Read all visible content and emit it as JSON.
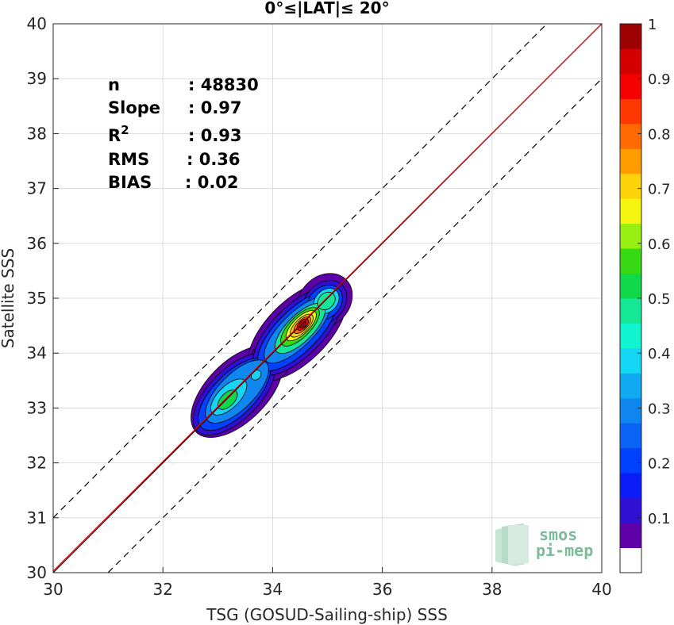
{
  "chart_data": {
    "type": "heatmap",
    "title": "0°≤|LAT|≤ 20°",
    "xlabel": "TSG (GOSUD-Sailing-ship) SSS",
    "ylabel": "Satellite SSS",
    "xlim": [
      30,
      40
    ],
    "ylim": [
      30,
      40
    ],
    "xticks": [
      "30",
      "32",
      "34",
      "36",
      "38",
      "40"
    ],
    "yticks": [
      "30",
      "31",
      "32",
      "33",
      "34",
      "35",
      "36",
      "37",
      "38",
      "39",
      "40"
    ],
    "grid": true,
    "stats": [
      {
        "label": "n",
        "value": ": 48830"
      },
      {
        "label": "Slope",
        "value": ": 0.97"
      },
      {
        "label": "R",
        "sup": "2",
        "value": ": 0.93"
      },
      {
        "label": "RMS",
        "value": ": 0.36"
      },
      {
        "label": "BIAS",
        "value": ": 0.02"
      }
    ],
    "lines": {
      "identity": {
        "slope": 1.0,
        "intercept": 0.0,
        "color": "#000000"
      },
      "fit": {
        "slope": 0.97,
        "intercept": 1.06,
        "color": "#e8000b"
      },
      "bounds": {
        "offset": 1.0,
        "color": "#000000",
        "style": "dashed"
      }
    },
    "density_peaks": [
      {
        "x": 34.55,
        "y": 34.52,
        "value": 1.0
      },
      {
        "x": 34.98,
        "y": 34.95,
        "value": 0.55
      },
      {
        "x": 33.2,
        "y": 33.15,
        "value": 0.5
      },
      {
        "x": 33.7,
        "y": 33.6,
        "value": 0.35
      }
    ],
    "colorbar": {
      "range": [
        0,
        1
      ],
      "ticks": [
        "0.1",
        "0.2",
        "0.3",
        "0.4",
        "0.5",
        "0.6",
        "0.7",
        "0.8",
        "0.9",
        "1"
      ],
      "colors": [
        "#ffffff",
        "#5d00a8",
        "#2f10d2",
        "#0a1cf5",
        "#0040ff",
        "#0a63f5",
        "#0f86f0",
        "#10aaf0",
        "#13d6f5",
        "#10f5d0",
        "#14e796",
        "#10d848",
        "#36d914",
        "#96ef10",
        "#f5f510",
        "#fcd20a",
        "#ff9c00",
        "#ff6a00",
        "#ff3800",
        "#f50000",
        "#d40000",
        "#9c0000"
      ]
    }
  },
  "logo": {
    "line1": "smos",
    "line2": "pi-mep"
  }
}
